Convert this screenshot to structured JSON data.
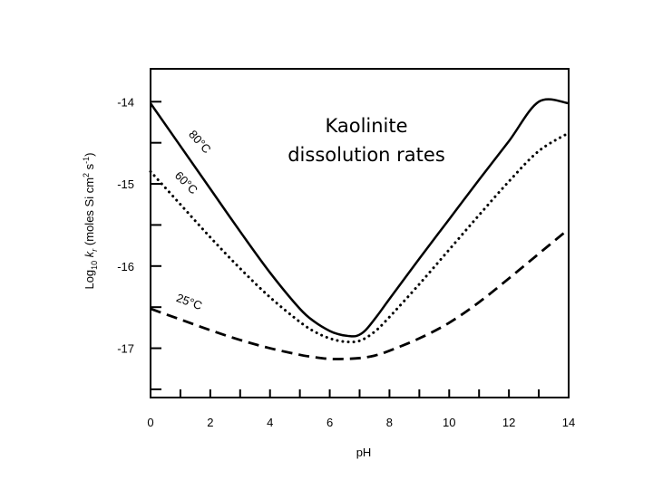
{
  "chart_data": {
    "type": "line",
    "title_lines": [
      "Kaolinite",
      "dissolution rates"
    ],
    "xlabel": "pH",
    "ylabel": {
      "prefix": "Log",
      "prefix_sub": "10",
      "var": "k",
      "var_sub": "r",
      "units_open": " (moles Si cm",
      "units_sup1": "2",
      "units_mid": " s",
      "units_sup2": "-1",
      "units_close": ")"
    },
    "xlim": [
      0,
      14
    ],
    "ylim": [
      -17.6,
      -13.6
    ],
    "x_ticks": [
      0,
      2,
      4,
      6,
      8,
      10,
      12,
      14
    ],
    "x_tick_labels": [
      "0",
      "2",
      "4",
      "6",
      "8",
      "10",
      "12",
      "14"
    ],
    "x_minor_ticks": [
      1,
      3,
      5,
      7,
      9,
      11,
      13
    ],
    "y_ticks": [
      -14,
      -15,
      -16,
      -17
    ],
    "y_tick_labels": [
      "-14",
      "-15",
      "-16",
      "-17"
    ],
    "y_minor_ticks": [
      -14.5,
      -15.5,
      -16.5,
      -17.5
    ],
    "grid": false,
    "legend": "none",
    "series": [
      {
        "name": "80°C",
        "style": "solid",
        "x": [
          0,
          1,
          2,
          3,
          4,
          5,
          5.5,
          6,
          6.3,
          6.6,
          6.9,
          7.2,
          7.6,
          8,
          9,
          10,
          11,
          12,
          13,
          14
        ],
        "y": [
          -14.02,
          -14.54,
          -15.06,
          -15.58,
          -16.08,
          -16.52,
          -16.68,
          -16.79,
          -16.83,
          -16.85,
          -16.85,
          -16.78,
          -16.6,
          -16.4,
          -15.91,
          -15.43,
          -14.95,
          -14.48,
          -14.0,
          -14.02
        ]
      },
      {
        "name": "60°C",
        "style": "dotted",
        "x": [
          0,
          1,
          2,
          3,
          4,
          5,
          5.5,
          6,
          6.5,
          7,
          7.5,
          8,
          9,
          10,
          11,
          12,
          13,
          14
        ],
        "y": [
          -14.85,
          -15.25,
          -15.65,
          -16.03,
          -16.38,
          -16.68,
          -16.8,
          -16.88,
          -16.92,
          -16.91,
          -16.8,
          -16.62,
          -16.22,
          -15.8,
          -15.38,
          -14.97,
          -14.6,
          -14.38
        ]
      },
      {
        "name": "25°C",
        "style": "dashed",
        "x": [
          0,
          1,
          2,
          3,
          4,
          5,
          5.5,
          6,
          6.5,
          7,
          7.5,
          8,
          9,
          10,
          11,
          12,
          13,
          14
        ],
        "y": [
          -16.52,
          -16.65,
          -16.78,
          -16.9,
          -17.0,
          -17.08,
          -17.11,
          -17.13,
          -17.13,
          -17.12,
          -17.09,
          -17.03,
          -16.88,
          -16.69,
          -16.44,
          -16.15,
          -15.85,
          -15.55
        ]
      }
    ],
    "curve_labels": [
      {
        "text": "80°C",
        "series": "80°C",
        "x": 1.55,
        "y": -14.52,
        "angle": 48
      },
      {
        "text": "60°C",
        "series": "60°C",
        "x": 1.1,
        "y": -15.02,
        "angle": 45
      },
      {
        "text": "25°C",
        "series": "25°C",
        "x": 1.25,
        "y": -16.48,
        "angle": 20
      }
    ]
  }
}
